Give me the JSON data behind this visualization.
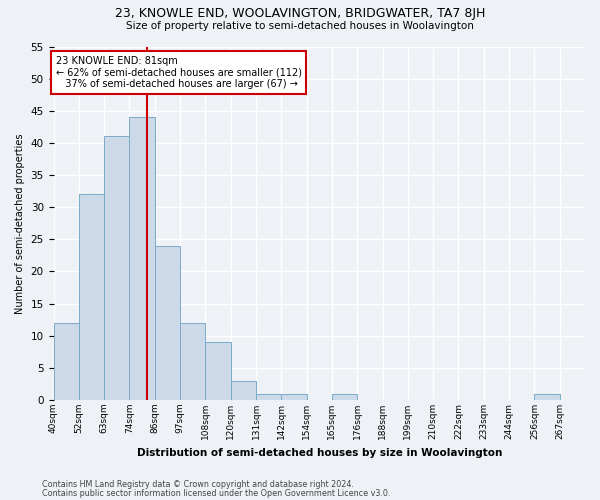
{
  "title": "23, KNOWLE END, WOOLAVINGTON, BRIDGWATER, TA7 8JH",
  "subtitle": "Size of property relative to semi-detached houses in Woolavington",
  "xlabel": "Distribution of semi-detached houses by size in Woolavington",
  "ylabel": "Number of semi-detached properties",
  "bin_labels": [
    "40sqm",
    "52sqm",
    "63sqm",
    "74sqm",
    "86sqm",
    "97sqm",
    "108sqm",
    "120sqm",
    "131sqm",
    "142sqm",
    "154sqm",
    "165sqm",
    "176sqm",
    "188sqm",
    "199sqm",
    "210sqm",
    "222sqm",
    "233sqm",
    "244sqm",
    "256sqm",
    "267sqm"
  ],
  "values": [
    12,
    32,
    41,
    44,
    24,
    12,
    9,
    3,
    1,
    1,
    0,
    1,
    0,
    0,
    0,
    0,
    0,
    0,
    0,
    1,
    0
  ],
  "bar_color": "#ccd9e8",
  "bar_edge_color": "#7aaac8",
  "vline_color": "#cc0000",
  "vline_bin_index": 3.7,
  "annotation_text": "23 KNOWLE END: 81sqm\n← 62% of semi-detached houses are smaller (112)\n   37% of semi-detached houses are larger (67) →",
  "annotation_box_color": "white",
  "annotation_box_edge": "#cc0000",
  "ylim": [
    0,
    55
  ],
  "yticks": [
    0,
    5,
    10,
    15,
    20,
    25,
    30,
    35,
    40,
    45,
    50,
    55
  ],
  "background_color": "#eef2f7",
  "grid_color": "white",
  "footer1": "Contains HM Land Registry data © Crown copyright and database right 2024.",
  "footer2": "Contains public sector information licensed under the Open Government Licence v3.0."
}
